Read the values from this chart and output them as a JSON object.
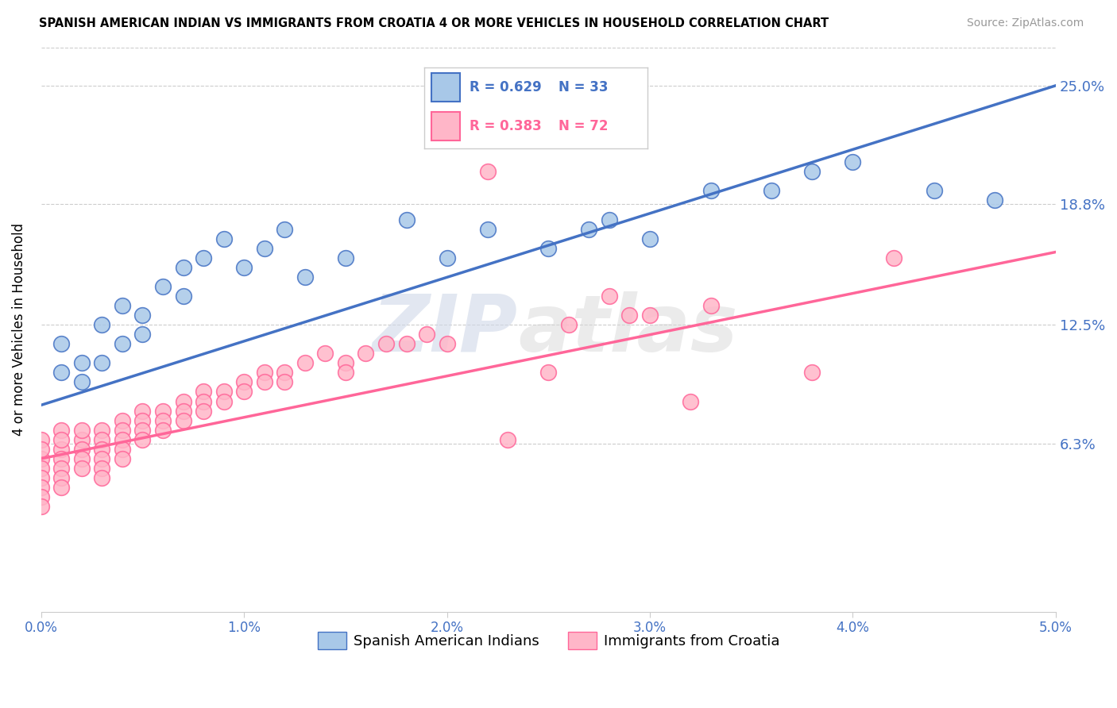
{
  "title": "SPANISH AMERICAN INDIAN VS IMMIGRANTS FROM CROATIA 4 OR MORE VEHICLES IN HOUSEHOLD CORRELATION CHART",
  "source": "Source: ZipAtlas.com",
  "ylabel": "4 or more Vehicles in Household",
  "watermark": "ZIPatlas",
  "series1_name": "Spanish American Indians",
  "series1_color": "#A8C8E8",
  "series1_edge_color": "#4472C4",
  "series1_line_color": "#4472C4",
  "series1_R": 0.629,
  "series1_N": 33,
  "series2_name": "Immigrants from Croatia",
  "series2_color": "#FFB6C8",
  "series2_edge_color": "#FF6699",
  "series2_line_color": "#FF6699",
  "series2_R": 0.383,
  "series2_N": 72,
  "xlim": [
    0.0,
    0.05
  ],
  "ylim": [
    -0.025,
    0.27
  ],
  "yticks": [
    0.0,
    0.063,
    0.125,
    0.188,
    0.25
  ],
  "ytick_labels": [
    "",
    "6.3%",
    "12.5%",
    "18.8%",
    "25.0%"
  ],
  "xticks": [
    0.0,
    0.01,
    0.02,
    0.03,
    0.04,
    0.05
  ],
  "xtick_labels": [
    "0.0%",
    "1.0%",
    "2.0%",
    "3.0%",
    "4.0%",
    "5.0%"
  ],
  "background_color": "#FFFFFF",
  "line1_x0": 0.0,
  "line1_y0": 0.083,
  "line1_x1": 0.05,
  "line1_y1": 0.25,
  "line2_x0": 0.0,
  "line2_y0": 0.055,
  "line2_x1": 0.05,
  "line2_y1": 0.163,
  "series1_x": [
    0.001,
    0.001,
    0.002,
    0.002,
    0.003,
    0.003,
    0.004,
    0.004,
    0.005,
    0.005,
    0.006,
    0.007,
    0.007,
    0.008,
    0.009,
    0.01,
    0.011,
    0.012,
    0.013,
    0.015,
    0.018,
    0.02,
    0.022,
    0.025,
    0.027,
    0.028,
    0.03,
    0.033,
    0.036,
    0.038,
    0.04,
    0.044,
    0.047
  ],
  "series1_y": [
    0.115,
    0.1,
    0.095,
    0.105,
    0.125,
    0.105,
    0.135,
    0.115,
    0.13,
    0.12,
    0.145,
    0.155,
    0.14,
    0.16,
    0.17,
    0.155,
    0.165,
    0.175,
    0.15,
    0.16,
    0.18,
    0.16,
    0.175,
    0.165,
    0.175,
    0.18,
    0.17,
    0.195,
    0.195,
    0.205,
    0.21,
    0.195,
    0.19
  ],
  "series2_x": [
    0.0,
    0.0,
    0.0,
    0.0,
    0.0,
    0.0,
    0.0,
    0.0,
    0.001,
    0.001,
    0.001,
    0.001,
    0.001,
    0.001,
    0.001,
    0.002,
    0.002,
    0.002,
    0.002,
    0.002,
    0.003,
    0.003,
    0.003,
    0.003,
    0.003,
    0.003,
    0.004,
    0.004,
    0.004,
    0.004,
    0.004,
    0.005,
    0.005,
    0.005,
    0.005,
    0.006,
    0.006,
    0.006,
    0.007,
    0.007,
    0.007,
    0.008,
    0.008,
    0.008,
    0.009,
    0.009,
    0.01,
    0.01,
    0.011,
    0.011,
    0.012,
    0.012,
    0.013,
    0.014,
    0.015,
    0.015,
    0.016,
    0.017,
    0.018,
    0.019,
    0.02,
    0.022,
    0.023,
    0.025,
    0.026,
    0.028,
    0.029,
    0.03,
    0.032,
    0.033,
    0.038,
    0.042
  ],
  "series2_y": [
    0.065,
    0.055,
    0.06,
    0.05,
    0.045,
    0.04,
    0.035,
    0.03,
    0.06,
    0.07,
    0.065,
    0.055,
    0.05,
    0.045,
    0.04,
    0.065,
    0.07,
    0.06,
    0.055,
    0.05,
    0.07,
    0.065,
    0.06,
    0.055,
    0.05,
    0.045,
    0.075,
    0.07,
    0.065,
    0.06,
    0.055,
    0.08,
    0.075,
    0.07,
    0.065,
    0.08,
    0.075,
    0.07,
    0.085,
    0.08,
    0.075,
    0.09,
    0.085,
    0.08,
    0.09,
    0.085,
    0.095,
    0.09,
    0.1,
    0.095,
    0.1,
    0.095,
    0.105,
    0.11,
    0.105,
    0.1,
    0.11,
    0.115,
    0.115,
    0.12,
    0.115,
    0.205,
    0.065,
    0.1,
    0.125,
    0.14,
    0.13,
    0.13,
    0.085,
    0.135,
    0.1,
    0.16
  ]
}
